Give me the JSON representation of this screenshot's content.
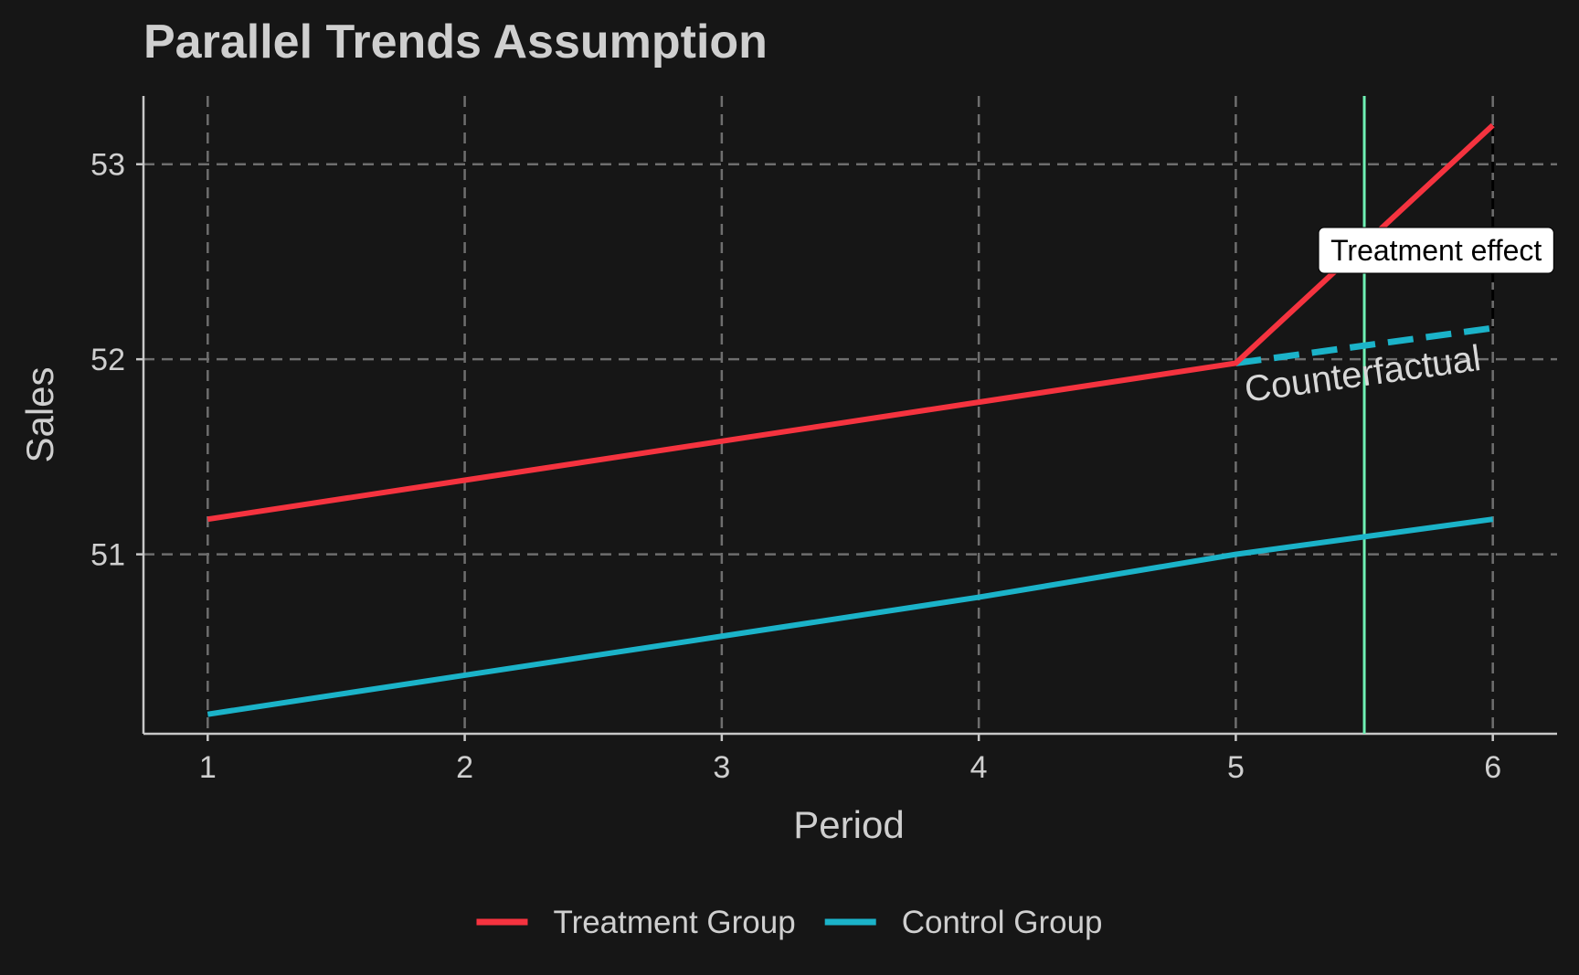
{
  "chart_data": {
    "type": "line",
    "title": "Parallel Trends Assumption",
    "xlabel": "Period",
    "ylabel": "Sales",
    "x": [
      1,
      2,
      3,
      4,
      5,
      6
    ],
    "xlim": [
      0.75,
      6.25
    ],
    "ylim": [
      50.08,
      53.35
    ],
    "yticks": [
      51,
      52,
      53
    ],
    "grid": true,
    "legend_position": "bottom",
    "series": [
      {
        "name": "Treatment Group",
        "color": "#f5333f",
        "values": [
          51.18,
          51.38,
          51.58,
          51.78,
          51.98,
          53.2
        ]
      },
      {
        "name": "Control Group",
        "color": "#1bb3c9",
        "values": [
          50.18,
          50.38,
          50.58,
          50.78,
          51.0,
          51.18
        ]
      }
    ],
    "counterfactual": {
      "x": [
        5,
        6
      ],
      "values": [
        51.98,
        52.16
      ],
      "color": "#1bb3c9",
      "style": "dashed"
    },
    "treatment_start_line": {
      "x": 5.5,
      "color": "#6ff0b4"
    },
    "effect_segment": {
      "x": 6,
      "from": 52.16,
      "to": 53.2
    },
    "annotations": {
      "counterfactual_label": "Counterfactual",
      "treatment_effect_label": "Treatment effect"
    }
  }
}
